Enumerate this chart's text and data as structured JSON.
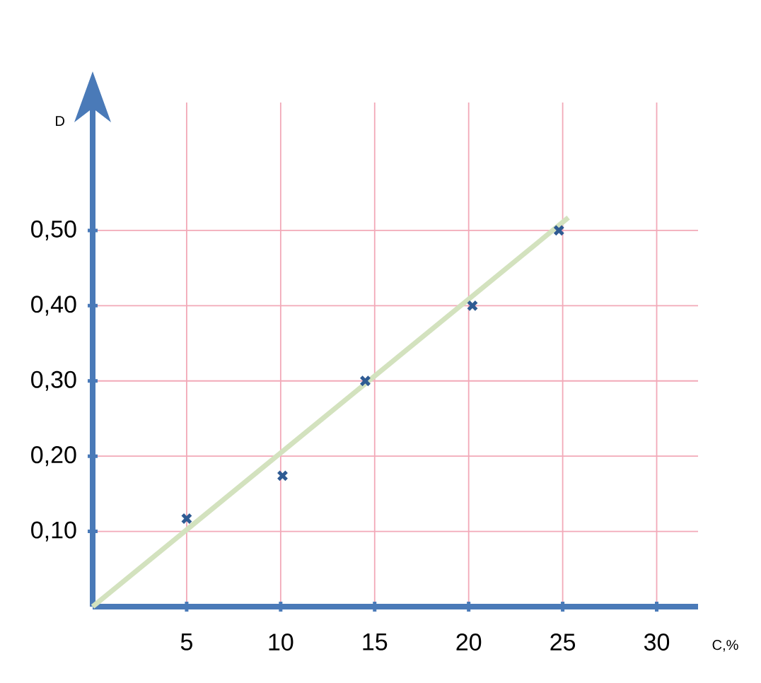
{
  "chart_data": {
    "type": "scatter",
    "xlabel": "C,%",
    "ylabel": "D",
    "xlim": [
      0,
      32.2
    ],
    "ylim": [
      0,
      0.67
    ],
    "xticks": [
      5,
      10,
      15,
      20,
      25,
      30
    ],
    "yticks": [
      {
        "value": 0.1,
        "label": "0,10"
      },
      {
        "value": 0.2,
        "label": "0,20"
      },
      {
        "value": 0.3,
        "label": "0,30"
      },
      {
        "value": 0.4,
        "label": "0,40"
      },
      {
        "value": 0.5,
        "label": "0,50"
      }
    ],
    "grid": true,
    "marker": "cross",
    "series": [
      {
        "color": "#2f5b93",
        "x": [
          5,
          10.1,
          14.5,
          20.2,
          24.8
        ],
        "values": [
          0.117,
          0.174,
          0.3,
          0.4,
          0.5
        ]
      },
      {
        "type": "line",
        "color": "#d3e2be",
        "marker": "none",
        "line_style": "solid",
        "x": [
          0,
          25.3
        ],
        "values": [
          0,
          0.517
        ]
      }
    ]
  }
}
